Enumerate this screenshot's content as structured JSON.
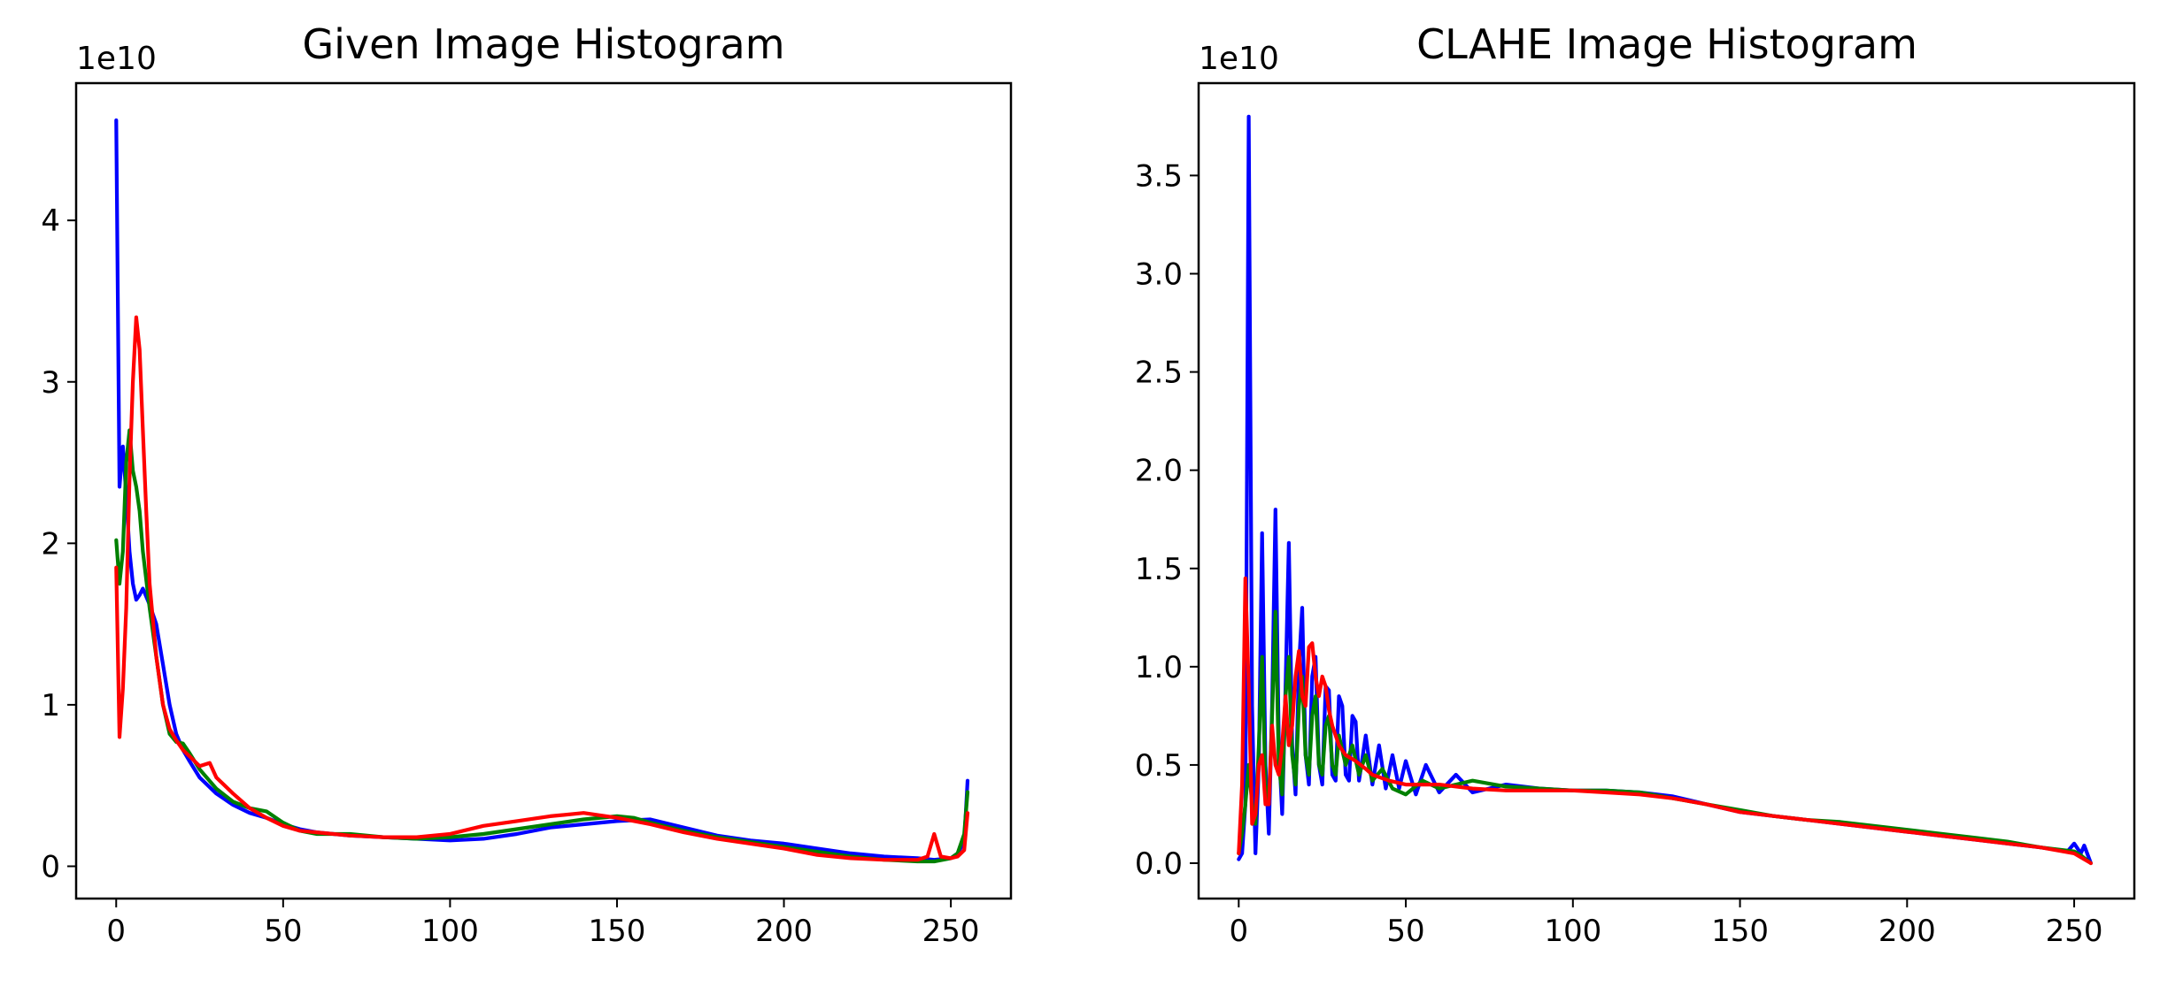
{
  "colors": {
    "blue": "#0000ff",
    "green": "#008000",
    "red": "#ff0000"
  },
  "chart_data": [
    {
      "type": "line",
      "title": "Given Image Histogram",
      "xlabel": "",
      "ylabel": "",
      "y_offset_label": "1e10",
      "xlim": [
        -12,
        268
      ],
      "ylim": [
        -0.2,
        4.85
      ],
      "xticks": [
        0,
        50,
        100,
        150,
        200,
        250
      ],
      "xtick_labels": [
        "0",
        "50",
        "100",
        "150",
        "200",
        "250"
      ],
      "yticks": [
        0,
        1,
        2,
        3,
        4
      ],
      "ytick_labels": [
        "0",
        "1",
        "2",
        "3",
        "4"
      ],
      "grid": false,
      "series": [
        {
          "color": "blue",
          "x": [
            0,
            1,
            2,
            3,
            4,
            5,
            6,
            7,
            8,
            10,
            12,
            14,
            16,
            18,
            20,
            22,
            25,
            30,
            35,
            40,
            45,
            50,
            55,
            60,
            70,
            80,
            90,
            100,
            110,
            120,
            130,
            140,
            150,
            160,
            170,
            180,
            190,
            200,
            210,
            220,
            230,
            240,
            245,
            250,
            252,
            254,
            255
          ],
          "y": [
            4.62,
            2.35,
            2.6,
            2.3,
            1.95,
            1.75,
            1.65,
            1.68,
            1.72,
            1.62,
            1.5,
            1.25,
            1.0,
            0.82,
            0.72,
            0.65,
            0.55,
            0.45,
            0.38,
            0.33,
            0.3,
            0.26,
            0.23,
            0.21,
            0.19,
            0.18,
            0.17,
            0.16,
            0.17,
            0.2,
            0.24,
            0.26,
            0.28,
            0.29,
            0.24,
            0.19,
            0.16,
            0.14,
            0.11,
            0.08,
            0.06,
            0.05,
            0.04,
            0.05,
            0.08,
            0.15,
            0.53
          ]
        },
        {
          "color": "green",
          "x": [
            0,
            1,
            2,
            3,
            4,
            5,
            6,
            7,
            8,
            10,
            12,
            14,
            16,
            18,
            20,
            22,
            25,
            30,
            35,
            40,
            45,
            50,
            55,
            60,
            70,
            80,
            90,
            100,
            110,
            120,
            130,
            140,
            150,
            155,
            160,
            170,
            180,
            190,
            200,
            210,
            220,
            230,
            240,
            245,
            250,
            252,
            254,
            255
          ],
          "y": [
            2.02,
            1.75,
            1.95,
            2.5,
            2.7,
            2.45,
            2.35,
            2.2,
            1.95,
            1.6,
            1.3,
            1.0,
            0.82,
            0.77,
            0.76,
            0.7,
            0.6,
            0.48,
            0.4,
            0.36,
            0.34,
            0.27,
            0.22,
            0.2,
            0.2,
            0.18,
            0.17,
            0.18,
            0.2,
            0.23,
            0.26,
            0.29,
            0.31,
            0.3,
            0.27,
            0.22,
            0.18,
            0.15,
            0.12,
            0.09,
            0.06,
            0.04,
            0.03,
            0.03,
            0.05,
            0.08,
            0.2,
            0.46
          ]
        },
        {
          "color": "red",
          "x": [
            0,
            1,
            2,
            3,
            4,
            5,
            6,
            7,
            8,
            9,
            10,
            12,
            14,
            16,
            18,
            20,
            22,
            25,
            28,
            30,
            35,
            40,
            45,
            50,
            55,
            60,
            70,
            80,
            90,
            100,
            110,
            120,
            130,
            140,
            150,
            160,
            170,
            180,
            190,
            200,
            210,
            220,
            230,
            240,
            243,
            245,
            247,
            250,
            252,
            254,
            255
          ],
          "y": [
            1.85,
            0.8,
            1.1,
            1.6,
            2.4,
            3.0,
            3.4,
            3.2,
            2.7,
            2.2,
            1.75,
            1.3,
            1.0,
            0.85,
            0.78,
            0.72,
            0.68,
            0.62,
            0.64,
            0.55,
            0.45,
            0.36,
            0.3,
            0.25,
            0.22,
            0.21,
            0.19,
            0.18,
            0.18,
            0.2,
            0.25,
            0.28,
            0.31,
            0.33,
            0.3,
            0.26,
            0.21,
            0.17,
            0.14,
            0.11,
            0.07,
            0.05,
            0.04,
            0.04,
            0.06,
            0.2,
            0.06,
            0.05,
            0.06,
            0.1,
            0.33
          ]
        }
      ]
    },
    {
      "type": "line",
      "title": "CLAHE Image Histogram",
      "xlabel": "",
      "ylabel": "",
      "y_offset_label": "1e10",
      "xlim": [
        -12,
        268
      ],
      "ylim": [
        -0.18,
        3.97
      ],
      "xticks": [
        0,
        50,
        100,
        150,
        200,
        250
      ],
      "xtick_labels": [
        "0",
        "50",
        "100",
        "150",
        "200",
        "250"
      ],
      "yticks": [
        0,
        0.5,
        1,
        1.5,
        2,
        2.5,
        3,
        3.5
      ],
      "ytick_labels": [
        "0.0",
        "0.5",
        "1.0",
        "1.5",
        "2.0",
        "2.5",
        "3.0",
        "3.5"
      ],
      "grid": false,
      "series": [
        {
          "color": "blue",
          "x": [
            0,
            1,
            2,
            3,
            4,
            5,
            6,
            7,
            8,
            9,
            10,
            11,
            12,
            13,
            14,
            15,
            16,
            17,
            18,
            19,
            20,
            21,
            22,
            23,
            24,
            25,
            26,
            27,
            28,
            29,
            30,
            31,
            32,
            33,
            34,
            35,
            36,
            38,
            40,
            42,
            44,
            46,
            48,
            50,
            53,
            56,
            60,
            65,
            70,
            80,
            90,
            100,
            110,
            120,
            130,
            140,
            150,
            160,
            170,
            180,
            190,
            200,
            210,
            220,
            230,
            240,
            248,
            250,
            252,
            253,
            255
          ],
          "y": [
            0.02,
            0.05,
            0.3,
            3.8,
            0.8,
            0.05,
            0.5,
            1.68,
            0.5,
            0.15,
            0.8,
            1.8,
            0.6,
            0.25,
            0.9,
            1.63,
            0.6,
            0.35,
            1.0,
            1.3,
            0.55,
            0.4,
            0.95,
            1.05,
            0.5,
            0.4,
            0.9,
            0.88,
            0.45,
            0.42,
            0.85,
            0.8,
            0.45,
            0.42,
            0.75,
            0.72,
            0.42,
            0.65,
            0.4,
            0.6,
            0.38,
            0.55,
            0.38,
            0.52,
            0.35,
            0.5,
            0.36,
            0.45,
            0.36,
            0.4,
            0.38,
            0.37,
            0.37,
            0.36,
            0.34,
            0.3,
            0.26,
            0.24,
            0.22,
            0.2,
            0.18,
            0.16,
            0.14,
            0.12,
            0.1,
            0.08,
            0.06,
            0.1,
            0.05,
            0.09,
            0.0
          ]
        },
        {
          "color": "green",
          "x": [
            0,
            1,
            2,
            3,
            4,
            5,
            6,
            7,
            8,
            9,
            10,
            11,
            12,
            13,
            14,
            15,
            16,
            17,
            18,
            19,
            20,
            21,
            22,
            23,
            24,
            25,
            26,
            27,
            28,
            29,
            30,
            32,
            34,
            36,
            38,
            40,
            43,
            46,
            50,
            55,
            60,
            70,
            80,
            90,
            100,
            110,
            120,
            130,
            140,
            150,
            160,
            170,
            180,
            190,
            200,
            210,
            220,
            230,
            240,
            250,
            252,
            255
          ],
          "y": [
            0.05,
            0.15,
            0.3,
            0.5,
            0.3,
            0.2,
            0.6,
            1.05,
            0.4,
            0.3,
            0.75,
            1.28,
            0.5,
            0.35,
            0.85,
            1.05,
            0.55,
            0.4,
            0.8,
            0.95,
            0.55,
            0.45,
            0.75,
            0.85,
            0.5,
            0.45,
            0.7,
            0.75,
            0.5,
            0.45,
            0.65,
            0.5,
            0.6,
            0.45,
            0.55,
            0.42,
            0.48,
            0.38,
            0.35,
            0.42,
            0.38,
            0.42,
            0.39,
            0.38,
            0.37,
            0.37,
            0.36,
            0.33,
            0.3,
            0.27,
            0.24,
            0.22,
            0.21,
            0.19,
            0.17,
            0.15,
            0.13,
            0.11,
            0.08,
            0.06,
            0.04,
            0.0
          ]
        },
        {
          "color": "red",
          "x": [
            0,
            1,
            2,
            3,
            4,
            5,
            6,
            7,
            8,
            9,
            10,
            11,
            12,
            13,
            14,
            15,
            16,
            17,
            18,
            19,
            20,
            21,
            22,
            23,
            24,
            25,
            26,
            27,
            28,
            30,
            32,
            35,
            38,
            40,
            45,
            50,
            55,
            60,
            70,
            80,
            90,
            100,
            110,
            120,
            130,
            140,
            150,
            160,
            170,
            180,
            190,
            200,
            210,
            220,
            230,
            240,
            250,
            253,
            255
          ],
          "y": [
            0.05,
            0.4,
            1.45,
            0.9,
            0.2,
            0.25,
            0.5,
            0.55,
            0.3,
            0.3,
            0.7,
            0.5,
            0.45,
            0.6,
            0.85,
            0.6,
            0.7,
            0.95,
            1.08,
            0.85,
            0.8,
            1.1,
            1.12,
            0.95,
            0.85,
            0.95,
            0.9,
            0.78,
            0.7,
            0.6,
            0.55,
            0.52,
            0.48,
            0.45,
            0.42,
            0.4,
            0.4,
            0.4,
            0.38,
            0.37,
            0.37,
            0.37,
            0.36,
            0.35,
            0.33,
            0.3,
            0.26,
            0.24,
            0.22,
            0.2,
            0.18,
            0.16,
            0.14,
            0.12,
            0.1,
            0.08,
            0.05,
            0.02,
            0.0
          ]
        }
      ]
    }
  ]
}
